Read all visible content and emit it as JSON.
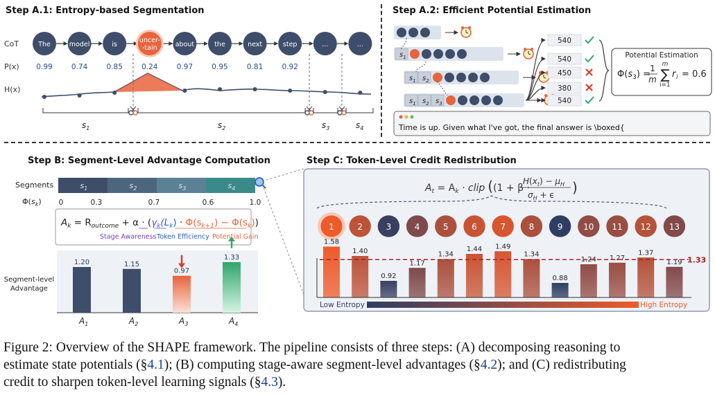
{
  "stepA1": {
    "title": "Step A.1: Entropy-based Segmentation",
    "row_labels": {
      "cot": "CoT",
      "px": "P(x)",
      "hx": "H(x)"
    },
    "tokens": [
      {
        "text": "The",
        "p": "0.99"
      },
      {
        "text": "model",
        "p": "0.74"
      },
      {
        "text": "is",
        "p": "0.85"
      },
      {
        "text": "uncer-\n-tain",
        "p": "0.24",
        "highlight": true
      },
      {
        "text": "about",
        "p": "0.97"
      },
      {
        "text": "the",
        "p": "0.95"
      },
      {
        "text": "next",
        "p": "0.81"
      },
      {
        "text": "step",
        "p": "0.92"
      },
      {
        "text": "...",
        "p": ""
      },
      {
        "text": "...",
        "p": ""
      }
    ],
    "segments": [
      "s1",
      "s2",
      "s3",
      "s4"
    ],
    "colors": {
      "token": "#3d4d6a",
      "highlight": "#e8643c"
    }
  },
  "stepA2": {
    "title": "Step A.2: Efficient Potential Estimation",
    "prefix_labels": [
      "s1",
      "s2",
      "s3"
    ],
    "rewards": [
      {
        "value": "540",
        "mark": "check"
      },
      {
        "value": "540",
        "mark": "check"
      },
      {
        "value": "450",
        "mark": "cross"
      },
      {
        "value": "380",
        "mark": "cross"
      },
      {
        "value": "540",
        "mark": "check"
      }
    ],
    "potential_box_title": "Potential Estimation",
    "potential_formula": {
      "lhs": "Φ(s",
      "lhs_sub": "3",
      "lhs_end": ") =",
      "frac_num": "1",
      "frac_den": "m",
      "sum_top": "m",
      "sum_bottom": "i=1",
      "term": "r",
      "term_sub": "i",
      "rhs": "= 0.6"
    },
    "prompt_text": "Time is up. Given what I've got, the final answer is \\boxed{"
  },
  "stepB": {
    "title": "Step B: Segment-Level Advantage Computation",
    "segments_label": "Segments",
    "phi_label": "Φ(s",
    "phi_label_sub": "k",
    "segments": [
      "s1",
      "s2",
      "s3",
      "s4"
    ],
    "phi_ticks": [
      "0",
      "0.3",
      "0.7",
      "0.6",
      "1.0"
    ],
    "formula": {
      "lhs": "A",
      "lhs_sub": "k",
      "eq": " = R",
      "r_sub": "outcome",
      "plus": " + α · (",
      "gamma": "γ",
      "gamma_sub": "k",
      "l": "(L",
      "l_sub": "k",
      "l_end": ")",
      "dot": " · ",
      "gain": "Φ(s",
      "gain_sub1": "k+1",
      "gain_mid": ") − Φ(s",
      "gain_sub2": "k",
      "gain_end": ")",
      "close": ")"
    },
    "formula_legend": [
      "Stage Awareness",
      "Token Efficiency",
      "Potential Gain"
    ],
    "ylabel": "Segment-level\nAdvantage",
    "colors": {
      "stage": "#7b3fc4",
      "token": "#2a62c9",
      "gain": "#e8643c"
    }
  },
  "stepC": {
    "title": "Step C: Token-Level Credit Redistribution",
    "formula": {
      "lhs": "A",
      "lhs_sub": "t",
      "eq": " = A",
      "ak_sub": "k",
      "clip": " · clip",
      "inner": "(1 + β ·",
      "num": "H(x",
      "num_sub": "t",
      "num_end": ") − μ",
      "num_mu_sub": "H",
      "den": "σ",
      "den_sub": "H",
      "den_end": " + ϵ",
      "close": ")"
    },
    "tokens": [
      "1",
      "2",
      "3",
      "4",
      "5",
      "6",
      "7",
      "8",
      "9",
      "10",
      "11",
      "12",
      "13"
    ],
    "threshold_label": "1.33",
    "legend_low": "Low Entropy",
    "legend_high": "High Entropy"
  },
  "chart_data": [
    {
      "type": "bar",
      "categories": [
        "A1",
        "A2",
        "A3",
        "A4"
      ],
      "values": [
        1.2,
        1.15,
        0.97,
        1.33
      ],
      "value_labels": [
        "1.20",
        "1.15",
        "0.97",
        "1.33"
      ],
      "ylim": [
        0,
        1.5
      ]
    },
    {
      "type": "bar",
      "categories": [
        "1",
        "2",
        "3",
        "4",
        "5",
        "6",
        "7",
        "8",
        "9",
        "10",
        "11",
        "12",
        "13"
      ],
      "values": [
        1.58,
        1.4,
        0.92,
        1.17,
        1.34,
        1.44,
        1.49,
        1.34,
        0.88,
        1.24,
        1.27,
        1.37,
        1.19
      ],
      "value_labels": [
        "1.58",
        "1.40",
        "0.92",
        "1.17",
        "1.34",
        "1.44",
        "1.49",
        "1.34",
        "0.88",
        "1.24",
        "1.27",
        "1.37",
        "1.19"
      ],
      "threshold": 1.33,
      "ylim": [
        0,
        1.7
      ]
    }
  ],
  "caption": {
    "line1_prefix": "Figure 2: Overview of the SHAPE framework. The pipeline consists of three steps: (A) decomposing reasoning to",
    "line2_a": "estimate state potentials (§",
    "ref1": "4.1",
    "line2_b": "); (B) computing stage-aware segment-level advantages (§",
    "ref2": "4.2",
    "line2_c": "); and (C) redistributing",
    "line3_a": "credit to sharpen token-level learning signals (§",
    "ref3": "4.3",
    "line3_b": ")."
  }
}
